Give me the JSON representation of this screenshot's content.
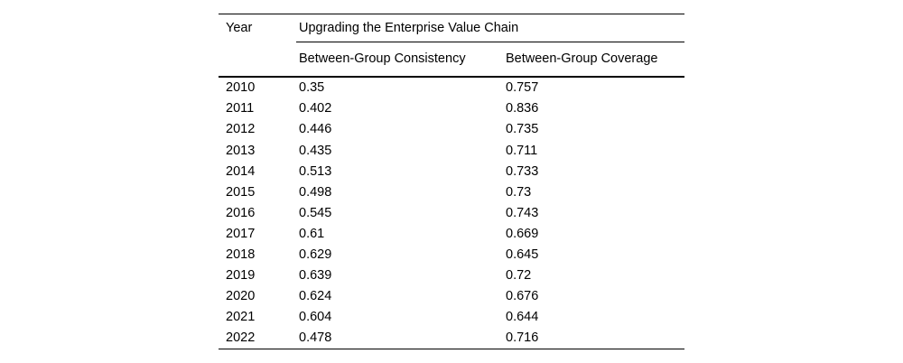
{
  "table": {
    "col_year": "Year",
    "span_header": "Upgrading the Enterprise Value Chain",
    "sub_col_consistency": "Between-Group Consistency",
    "sub_col_coverage": "Between-Group Coverage"
  },
  "chart_data": {
    "type": "table",
    "title": "Upgrading the Enterprise Value Chain",
    "columns": [
      "Year",
      "Between-Group Consistency",
      "Between-Group Coverage"
    ],
    "rows": [
      {
        "year": "2010",
        "consistency": "0.35",
        "coverage": "0.757"
      },
      {
        "year": "2011",
        "consistency": "0.402",
        "coverage": "0.836"
      },
      {
        "year": "2012",
        "consistency": "0.446",
        "coverage": "0.735"
      },
      {
        "year": "2013",
        "consistency": "0.435",
        "coverage": "0.711"
      },
      {
        "year": "2014",
        "consistency": "0.513",
        "coverage": "0.733"
      },
      {
        "year": "2015",
        "consistency": "0.498",
        "coverage": "0.73"
      },
      {
        "year": "2016",
        "consistency": "0.545",
        "coverage": "0.743"
      },
      {
        "year": "2017",
        "consistency": "0.61",
        "coverage": "0.669"
      },
      {
        "year": "2018",
        "consistency": "0.629",
        "coverage": "0.645"
      },
      {
        "year": "2019",
        "consistency": "0.639",
        "coverage": "0.72"
      },
      {
        "year": "2020",
        "consistency": "0.624",
        "coverage": "0.676"
      },
      {
        "year": "2021",
        "consistency": "0.604",
        "coverage": "0.644"
      },
      {
        "year": "2022",
        "consistency": "0.478",
        "coverage": "0.716"
      }
    ]
  }
}
